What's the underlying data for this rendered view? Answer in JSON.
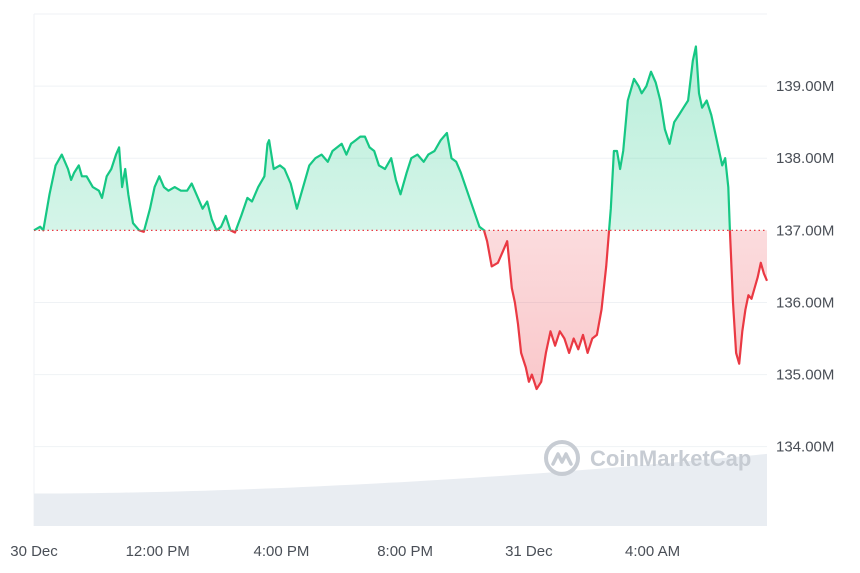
{
  "chart_data": {
    "type": "area",
    "baseline": 137.0,
    "ylim": [
      132.9,
      140.0
    ],
    "y_ticks": [
      {
        "value": 134.0,
        "label": "134.00M"
      },
      {
        "value": 135.0,
        "label": "135.00M"
      },
      {
        "value": 136.0,
        "label": "136.00M"
      },
      {
        "value": 137.0,
        "label": "137.00M"
      },
      {
        "value": 138.0,
        "label": "138.00M"
      },
      {
        "value": 139.0,
        "label": "139.00M"
      }
    ],
    "x_ticks": [
      {
        "hour": 0,
        "label": "30 Dec"
      },
      {
        "hour": 4,
        "label": "12:00 PM"
      },
      {
        "hour": 8,
        "label": "4:00 PM"
      },
      {
        "hour": 12,
        "label": "8:00 PM"
      },
      {
        "hour": 16,
        "label": "31 Dec"
      },
      {
        "hour": 20,
        "label": "4:00 AM"
      }
    ],
    "xlim": [
      0,
      23.7
    ],
    "series": [
      {
        "values_hour_price": [
          [
            0.0,
            137.0
          ],
          [
            0.2,
            137.05
          ],
          [
            0.3,
            137.0
          ],
          [
            0.5,
            137.5
          ],
          [
            0.7,
            137.9
          ],
          [
            0.9,
            138.05
          ],
          [
            1.1,
            137.85
          ],
          [
            1.2,
            137.7
          ],
          [
            1.3,
            137.8
          ],
          [
            1.45,
            137.9
          ],
          [
            1.55,
            137.75
          ],
          [
            1.7,
            137.75
          ],
          [
            1.9,
            137.6
          ],
          [
            2.1,
            137.55
          ],
          [
            2.2,
            137.45
          ],
          [
            2.35,
            137.75
          ],
          [
            2.5,
            137.85
          ],
          [
            2.65,
            138.05
          ],
          [
            2.75,
            138.15
          ],
          [
            2.85,
            137.6
          ],
          [
            2.95,
            137.85
          ],
          [
            3.05,
            137.5
          ],
          [
            3.2,
            137.1
          ],
          [
            3.4,
            137.0
          ],
          [
            3.55,
            136.98
          ],
          [
            3.75,
            137.3
          ],
          [
            3.9,
            137.6
          ],
          [
            4.05,
            137.75
          ],
          [
            4.2,
            137.6
          ],
          [
            4.35,
            137.55
          ],
          [
            4.55,
            137.6
          ],
          [
            4.75,
            137.55
          ],
          [
            4.95,
            137.55
          ],
          [
            5.1,
            137.65
          ],
          [
            5.25,
            137.5
          ],
          [
            5.45,
            137.3
          ],
          [
            5.6,
            137.4
          ],
          [
            5.75,
            137.15
          ],
          [
            5.9,
            137.0
          ],
          [
            6.05,
            137.05
          ],
          [
            6.2,
            137.2
          ],
          [
            6.35,
            137.0
          ],
          [
            6.5,
            136.97
          ],
          [
            6.7,
            137.2
          ],
          [
            6.9,
            137.45
          ],
          [
            7.05,
            137.4
          ],
          [
            7.25,
            137.6
          ],
          [
            7.45,
            137.75
          ],
          [
            7.55,
            138.2
          ],
          [
            7.6,
            138.25
          ],
          [
            7.75,
            137.85
          ],
          [
            7.95,
            137.9
          ],
          [
            8.1,
            137.85
          ],
          [
            8.3,
            137.65
          ],
          [
            8.5,
            137.3
          ],
          [
            8.7,
            137.6
          ],
          [
            8.9,
            137.9
          ],
          [
            9.1,
            138.0
          ],
          [
            9.3,
            138.05
          ],
          [
            9.5,
            137.95
          ],
          [
            9.65,
            138.1
          ],
          [
            9.8,
            138.15
          ],
          [
            9.95,
            138.2
          ],
          [
            10.1,
            138.05
          ],
          [
            10.25,
            138.2
          ],
          [
            10.4,
            138.25
          ],
          [
            10.55,
            138.3
          ],
          [
            10.7,
            138.3
          ],
          [
            10.85,
            138.15
          ],
          [
            11.0,
            138.1
          ],
          [
            11.15,
            137.9
          ],
          [
            11.35,
            137.85
          ],
          [
            11.55,
            138.0
          ],
          [
            11.7,
            137.7
          ],
          [
            11.85,
            137.5
          ],
          [
            12.05,
            137.8
          ],
          [
            12.2,
            138.0
          ],
          [
            12.4,
            138.05
          ],
          [
            12.6,
            137.95
          ],
          [
            12.75,
            138.05
          ],
          [
            12.95,
            138.1
          ],
          [
            13.15,
            138.25
          ],
          [
            13.35,
            138.35
          ],
          [
            13.5,
            138.0
          ],
          [
            13.65,
            137.95
          ],
          [
            13.8,
            137.8
          ],
          [
            14.0,
            137.55
          ],
          [
            14.2,
            137.3
          ],
          [
            14.4,
            137.05
          ],
          [
            14.55,
            137.0
          ],
          [
            14.65,
            136.85
          ],
          [
            14.8,
            136.5
          ],
          [
            15.0,
            136.55
          ],
          [
            15.15,
            136.7
          ],
          [
            15.3,
            136.85
          ],
          [
            15.45,
            136.2
          ],
          [
            15.55,
            136.0
          ],
          [
            15.65,
            135.7
          ],
          [
            15.75,
            135.3
          ],
          [
            15.9,
            135.1
          ],
          [
            16.0,
            134.9
          ],
          [
            16.1,
            135.0
          ],
          [
            16.25,
            134.8
          ],
          [
            16.4,
            134.9
          ],
          [
            16.55,
            135.3
          ],
          [
            16.7,
            135.6
          ],
          [
            16.85,
            135.4
          ],
          [
            17.0,
            135.6
          ],
          [
            17.15,
            135.5
          ],
          [
            17.3,
            135.3
          ],
          [
            17.45,
            135.5
          ],
          [
            17.6,
            135.35
          ],
          [
            17.75,
            135.55
          ],
          [
            17.9,
            135.3
          ],
          [
            18.05,
            135.5
          ],
          [
            18.2,
            135.55
          ],
          [
            18.35,
            135.9
          ],
          [
            18.5,
            136.5
          ],
          [
            18.65,
            137.3
          ],
          [
            18.75,
            138.1
          ],
          [
            18.85,
            138.1
          ],
          [
            18.95,
            137.85
          ],
          [
            19.05,
            138.1
          ],
          [
            19.2,
            138.8
          ],
          [
            19.4,
            139.1
          ],
          [
            19.55,
            139.0
          ],
          [
            19.65,
            138.9
          ],
          [
            19.8,
            139.0
          ],
          [
            19.95,
            139.2
          ],
          [
            20.1,
            139.05
          ],
          [
            20.25,
            138.8
          ],
          [
            20.4,
            138.4
          ],
          [
            20.55,
            138.2
          ],
          [
            20.7,
            138.5
          ],
          [
            20.85,
            138.6
          ],
          [
            21.0,
            138.7
          ],
          [
            21.15,
            138.8
          ],
          [
            21.3,
            139.35
          ],
          [
            21.4,
            139.55
          ],
          [
            21.5,
            138.9
          ],
          [
            21.6,
            138.7
          ],
          [
            21.75,
            138.8
          ],
          [
            21.9,
            138.6
          ],
          [
            22.05,
            138.3
          ],
          [
            22.15,
            138.1
          ],
          [
            22.25,
            137.9
          ],
          [
            22.35,
            138.0
          ],
          [
            22.45,
            137.6
          ],
          [
            22.5,
            137.0
          ],
          [
            22.6,
            136.0
          ],
          [
            22.7,
            135.3
          ],
          [
            22.8,
            135.15
          ],
          [
            22.9,
            135.6
          ],
          [
            23.0,
            135.9
          ],
          [
            23.1,
            136.1
          ],
          [
            23.2,
            136.05
          ],
          [
            23.3,
            136.2
          ],
          [
            23.4,
            136.35
          ],
          [
            23.5,
            136.55
          ],
          [
            23.6,
            136.4
          ],
          [
            23.7,
            136.3
          ]
        ]
      }
    ],
    "volume_band": {
      "start": 133.35,
      "end": 133.9
    }
  },
  "colors": {
    "up": "#16c784",
    "down": "#ea3943",
    "grid": "#eff2f5",
    "baseline": "#ea3943",
    "volume": "#e9edf2",
    "ticks": "#4a4f57",
    "watermark": "#c7ccd3"
  },
  "watermark": {
    "text": "CoinMarketCap",
    "icon": "coinmarketcap-logo-icon"
  }
}
